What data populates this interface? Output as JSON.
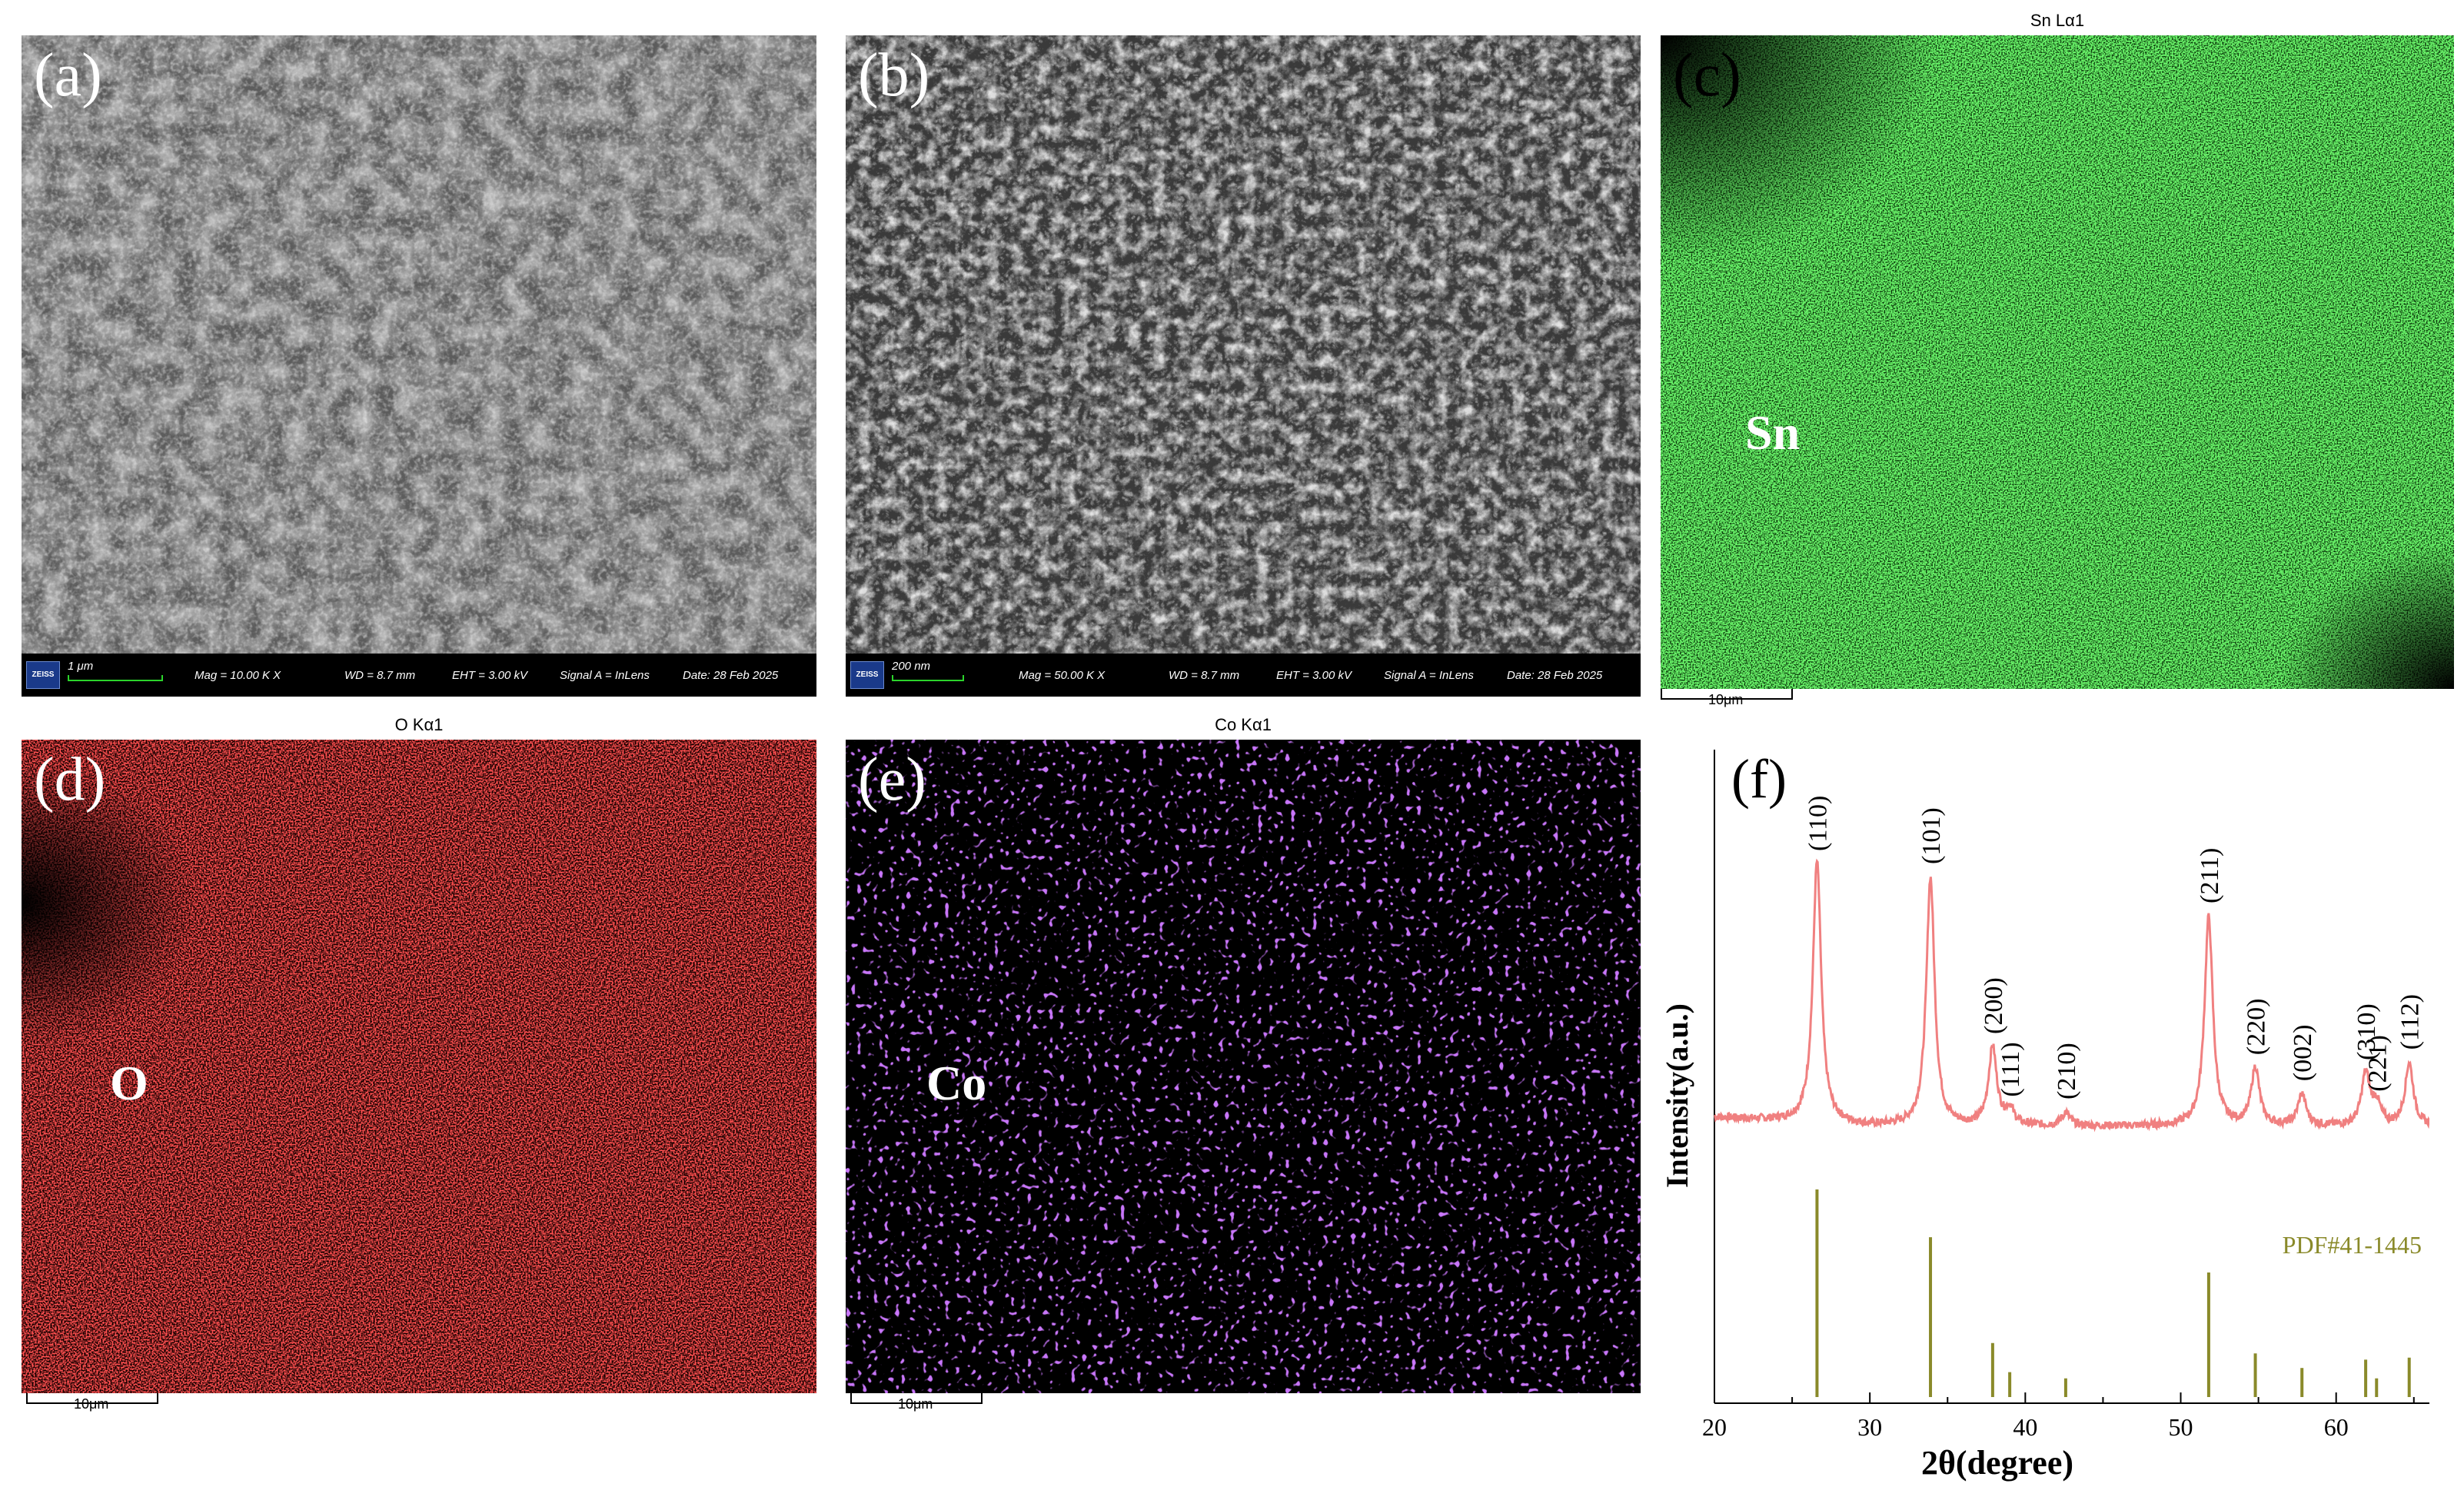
{
  "panels": {
    "a": {
      "label": "(a)",
      "info": {
        "brand": "ZEISS",
        "scale": "1 μm",
        "mag": "Mag =  10.00 K X",
        "wd": "WD =  8.7 mm",
        "eht": "EHT =  3.00 kV",
        "signal": "Signal A = InLens",
        "date": "Date: 28 Feb 2025"
      }
    },
    "b": {
      "label": "(b)",
      "info": {
        "brand": "ZEISS",
        "scale": "200 nm",
        "mag": "Mag =  50.00 K X",
        "wd": "WD =  8.7 mm",
        "eht": "EHT =  3.00 kV",
        "signal": "Signal A = InLens",
        "date": "Date: 28 Feb 2025"
      }
    },
    "c": {
      "label": "(c)",
      "map_title": "Sn Lα1",
      "element": "Sn",
      "scale": "10μm",
      "color": "#22dd22"
    },
    "d": {
      "label": "(d)",
      "map_title": "O Kα1",
      "element": "O",
      "scale": "10μm",
      "color": "#ff1a1a"
    },
    "e": {
      "label": "(e)",
      "map_title": "Co Kα1",
      "element": "Co",
      "scale": "10μm",
      "color": "#8a2be2"
    },
    "f": {
      "label": "(f)"
    }
  },
  "chart_data": {
    "type": "line",
    "xlabel": "2θ(degree)",
    "ylabel": "Intensity(a.u.)",
    "xlim": [
      20,
      66
    ],
    "xticks": [
      20,
      30,
      40,
      50,
      60
    ],
    "series_color": "#f08080",
    "reference_color": "#8a8a2a",
    "reference_label": "PDF#41-1445",
    "peaks": [
      {
        "hkl": "(110)",
        "x": 26.6,
        "height": 1.0
      },
      {
        "hkl": "(101)",
        "x": 33.9,
        "height": 0.95
      },
      {
        "hkl": "(200)",
        "x": 37.9,
        "height": 0.3
      },
      {
        "hkl": "(111)",
        "x": 39.0,
        "height": 0.06
      },
      {
        "hkl": "(210)",
        "x": 42.6,
        "height": 0.05
      },
      {
        "hkl": "(211)",
        "x": 51.8,
        "height": 0.8
      },
      {
        "hkl": "(220)",
        "x": 54.8,
        "height": 0.22
      },
      {
        "hkl": "(002)",
        "x": 57.8,
        "height": 0.12
      },
      {
        "hkl": "(310)",
        "x": 61.9,
        "height": 0.2
      },
      {
        "hkl": "(221)",
        "x": 62.6,
        "height": 0.08
      },
      {
        "hkl": "(112)",
        "x": 64.7,
        "height": 0.24
      }
    ],
    "reference": [
      {
        "x": 26.6,
        "height": 1.0
      },
      {
        "x": 33.9,
        "height": 0.77
      },
      {
        "x": 37.9,
        "height": 0.26
      },
      {
        "x": 39.0,
        "height": 0.12
      },
      {
        "x": 42.6,
        "height": 0.09
      },
      {
        "x": 51.8,
        "height": 0.6
      },
      {
        "x": 54.8,
        "height": 0.21
      },
      {
        "x": 57.8,
        "height": 0.14
      },
      {
        "x": 61.9,
        "height": 0.18
      },
      {
        "x": 62.6,
        "height": 0.09
      },
      {
        "x": 64.7,
        "height": 0.19
      }
    ]
  }
}
